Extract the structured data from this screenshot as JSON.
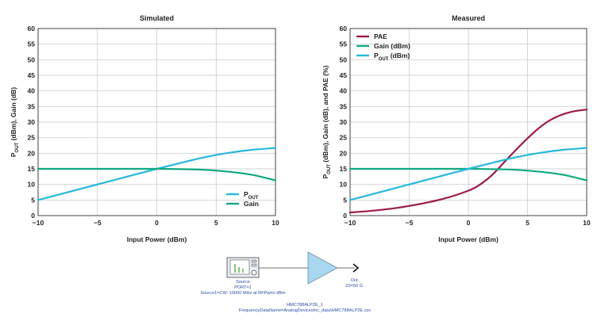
{
  "chart_data": [
    {
      "type": "line",
      "title": "Simulated",
      "xlabel": "Input Power (dBm)",
      "ylabel_main": "P",
      "ylabel_sub": "OUT",
      "ylabel_rest": " (dBm), Gain (dB)",
      "xlim": [
        -10,
        10
      ],
      "ylim": [
        0,
        60
      ],
      "xticks": [
        "−10",
        "−5",
        "0",
        "5",
        "10"
      ],
      "yticks": [
        "0",
        "5",
        "10",
        "15",
        "20",
        "25",
        "30",
        "35",
        "40",
        "45",
        "50",
        "55",
        "60"
      ],
      "grid": true,
      "legend_position": "bottom-right",
      "series": [
        {
          "name": "P",
          "sub": "OUT",
          "color": "#27b8dc",
          "x": [
            -10,
            -8,
            -6,
            -4,
            -2,
            0,
            2,
            4,
            6,
            8,
            10
          ],
          "y": [
            5,
            7,
            9,
            11,
            13,
            15,
            16.9,
            18.7,
            20.1,
            21.1,
            21.7
          ]
        },
        {
          "name": "Gain",
          "sub": "",
          "color": "#10a97f",
          "x": [
            -10,
            -8,
            -6,
            -4,
            -2,
            0,
            2,
            4,
            6,
            8,
            10
          ],
          "y": [
            15,
            15,
            15,
            15,
            15,
            15,
            14.9,
            14.7,
            14.1,
            13.1,
            11.3
          ]
        }
      ]
    },
    {
      "type": "line",
      "title": "Measured",
      "xlabel": "Input Power (dBm)",
      "ylabel_main": "P",
      "ylabel_sub": "OUT",
      "ylabel_rest": " (dBm), Gain (dB), and PAE (%)",
      "xlim": [
        -10,
        10
      ],
      "ylim": [
        0,
        60
      ],
      "xticks": [
        "−10",
        "−5",
        "0",
        "5",
        "10"
      ],
      "yticks": [
        "0",
        "5",
        "10",
        "15",
        "20",
        "25",
        "30",
        "35",
        "40",
        "45",
        "50",
        "55",
        "60"
      ],
      "grid": true,
      "legend_position": "top-left",
      "series": [
        {
          "name": "PAE",
          "sub": "",
          "suffix": "",
          "color": "#9c1c4e",
          "x": [
            -10,
            -8,
            -6,
            -4,
            -2,
            0,
            1,
            2,
            3,
            4,
            5,
            6,
            7,
            8,
            9,
            10
          ],
          "y": [
            1,
            1.6,
            2.5,
            3.8,
            5.5,
            8,
            10,
            13,
            17,
            21,
            24.8,
            28.2,
            30.8,
            32.5,
            33.5,
            34
          ]
        },
        {
          "name": "Gain (dBm)",
          "sub": "",
          "suffix": "",
          "color": "#10a97f",
          "x": [
            -10,
            -8,
            -6,
            -4,
            -2,
            0,
            2,
            4,
            6,
            8,
            10
          ],
          "y": [
            15,
            15,
            15,
            15,
            15,
            15,
            14.9,
            14.7,
            14.1,
            13.1,
            11.3
          ]
        },
        {
          "name": "P",
          "sub": "OUT",
          "suffix": " (dBm)",
          "color": "#27b8dc",
          "x": [
            -10,
            -8,
            -6,
            -4,
            -2,
            0,
            2,
            4,
            6,
            8,
            10
          ],
          "y": [
            5,
            7,
            9,
            11,
            13,
            15,
            16.9,
            18.7,
            20.1,
            21.1,
            21.7
          ]
        }
      ]
    }
  ],
  "schematic": {
    "source_label": "Source",
    "source_port": "PORT=1",
    "source_desc": "Source1=CW: 10000 MHz at RFPwrin dBm",
    "out_label": "Out",
    "out_impedance": "Z0=50 Ω",
    "amp_name": "HMC788ALP2E_1",
    "amp_file": "FrequencyDataName=AnalogDevicesInc_data\\HMC788ALP2E.csv"
  }
}
